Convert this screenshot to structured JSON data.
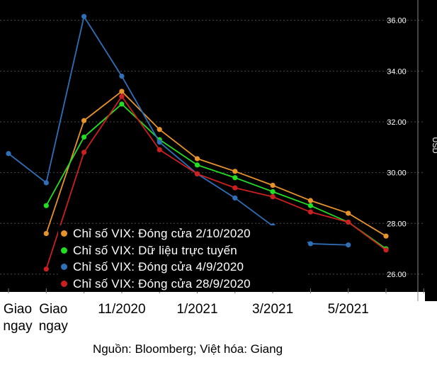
{
  "chart_data": {
    "type": "line",
    "ylabel": "USD",
    "ylim": [
      25.3,
      36.8
    ],
    "y_ticks": [
      "26.00",
      "28.00",
      "30.00",
      "32.00",
      "34.00",
      "36.00"
    ],
    "x_tick_labels": [
      {
        "label": "Giao\nngay",
        "x": 0
      },
      {
        "label": "Giao\nngay",
        "x": 1
      },
      {
        "label": "11/2020",
        "x": 3
      },
      {
        "label": "1/2021",
        "x": 5
      },
      {
        "label": "3/2021",
        "x": 7
      },
      {
        "label": "5/2021",
        "x": 9
      }
    ],
    "series": [
      {
        "name": "Chỉ số VIX: Đóng cửa 2/10/2020",
        "color": "#e8922a",
        "points": [
          [
            1,
            27.6
          ],
          [
            2,
            32.05
          ],
          [
            3,
            33.2
          ],
          [
            4,
            31.7
          ],
          [
            5,
            30.55
          ],
          [
            6,
            30.05
          ],
          [
            7,
            29.5
          ],
          [
            8,
            28.9
          ],
          [
            9,
            28.4
          ],
          [
            10,
            27.5
          ]
        ]
      },
      {
        "name": "Chỉ số VIX: Dữ liệu trực tuyến",
        "color": "#22dd22",
        "points": [
          [
            1,
            28.7
          ],
          [
            2,
            31.4
          ],
          [
            3,
            32.7
          ],
          [
            4,
            31.3
          ],
          [
            5,
            30.3
          ],
          [
            6,
            29.8
          ],
          [
            7,
            29.25
          ],
          [
            8,
            28.7
          ],
          [
            9,
            28.05
          ],
          [
            10,
            27.0
          ]
        ]
      },
      {
        "name": "Chỉ số VIX: Đóng cửa 4/9/2020",
        "color": "#2f6fb8",
        "points": [
          [
            0,
            30.75
          ],
          [
            1,
            29.6
          ],
          [
            2,
            36.15
          ],
          [
            3,
            33.8
          ],
          [
            4,
            31.2
          ],
          [
            5,
            29.95
          ],
          [
            6,
            29.0
          ],
          [
            7,
            27.9
          ],
          [
            8,
            27.2
          ],
          [
            9,
            27.15
          ]
        ]
      },
      {
        "name": "Chỉ số VIX: Đóng cửa 28/9/2020",
        "color": "#cc1f1f",
        "points": [
          [
            1,
            26.2
          ],
          [
            2,
            30.8
          ],
          [
            3,
            33.0
          ],
          [
            4,
            30.9
          ],
          [
            5,
            29.95
          ],
          [
            6,
            29.4
          ],
          [
            7,
            29.05
          ],
          [
            8,
            28.45
          ],
          [
            9,
            28.05
          ],
          [
            10,
            26.95
          ]
        ]
      }
    ],
    "source": "Nguồn: Bloomberg; Việt hóa: Giang"
  }
}
